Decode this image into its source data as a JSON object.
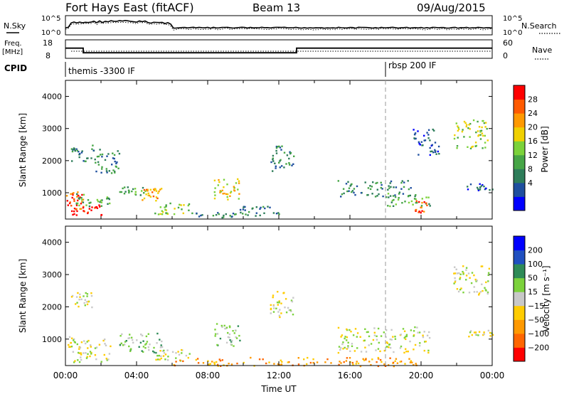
{
  "header": {
    "station": "Fort Hays East (fitACF)",
    "beam": "Beam 13",
    "date": "09/Aug/2015"
  },
  "aux": {
    "nsky_label": "N.Sky",
    "nsearch_label": "N.Search",
    "noise_ticks": [
      "10^5",
      "10^0"
    ],
    "freq_label_lines": [
      "Freq.",
      "[MHz]"
    ],
    "freq_ticks": [
      "18",
      "8"
    ],
    "nave_label": "Nave",
    "nave_ticks": [
      "60",
      "0"
    ],
    "cpid_label": "CPID",
    "cpid_segments": [
      {
        "label": "themis -3300 IF",
        "start_h": 0.0
      },
      {
        "label": "rbsp 200 IF",
        "start_h": 18.0
      }
    ],
    "freq_steps": [
      {
        "start_h": 0.0,
        "end_h": 1.0,
        "mhz": 13.5
      },
      {
        "start_h": 1.0,
        "end_h": 13.0,
        "mhz": 11.0
      },
      {
        "start_h": 13.0,
        "end_h": 24.0,
        "mhz": 13.5
      }
    ]
  },
  "colors": {
    "power_scale": [
      "#0000ff",
      "#1f4f9f",
      "#2e7d5a",
      "#46a546",
      "#7bd23a",
      "#f0d000",
      "#ff9900",
      "#ff5a00",
      "#ff0000"
    ],
    "velocity_scale": [
      "#0000ff",
      "#2050c0",
      "#2e8b57",
      "#7cd23c",
      "#c8c8c8",
      "#ffcc00",
      "#ff9900",
      "#ff6600",
      "#ff0000"
    ]
  },
  "power_colorbar": {
    "label": "Power [dB]",
    "ticks": [
      "28",
      "24",
      "20",
      "16",
      "12",
      "8",
      "4"
    ]
  },
  "velocity_colorbar": {
    "label": "Velocity [m s⁻¹]",
    "ticks": [
      "200",
      "100",
      "50",
      "15",
      "−15",
      "−50",
      "−100",
      "−200"
    ]
  },
  "chart_data": [
    {
      "type": "heatmap",
      "panel": "power",
      "xlabel": "",
      "ylabel": "Slant Range [km]",
      "xlim_hours": [
        0,
        24
      ],
      "ylim_km": [
        180,
        4500
      ],
      "yticks": [
        1000,
        2000,
        3000,
        4000
      ],
      "vertical_marker_h": 18.0,
      "echo_regions": [
        {
          "t0": 0.0,
          "t1": 1.0,
          "r0": 500,
          "r1": 1100,
          "level": 7
        },
        {
          "t0": 0.3,
          "t1": 2.0,
          "r0": 300,
          "r1": 700,
          "level": 8
        },
        {
          "t0": 0.5,
          "t1": 2.5,
          "r0": 600,
          "r1": 1000,
          "level": 3
        },
        {
          "t0": 0.3,
          "t1": 1.5,
          "r0": 2000,
          "r1": 2500,
          "level": 2
        },
        {
          "t0": 1.5,
          "t1": 3.0,
          "r0": 1600,
          "r1": 2400,
          "level": 2
        },
        {
          "t0": 3.0,
          "t1": 4.5,
          "r0": 900,
          "r1": 1200,
          "level": 3
        },
        {
          "t0": 4.2,
          "t1": 5.5,
          "r0": 700,
          "r1": 1200,
          "level": 6
        },
        {
          "t0": 5.0,
          "t1": 7.0,
          "r0": 350,
          "r1": 700,
          "level": 4
        },
        {
          "t0": 7.0,
          "t1": 9.5,
          "r0": 250,
          "r1": 400,
          "level": 2
        },
        {
          "t0": 8.3,
          "t1": 9.8,
          "r0": 800,
          "r1": 1500,
          "level": 5
        },
        {
          "t0": 11.5,
          "t1": 12.8,
          "r0": 1700,
          "r1": 2500,
          "level": 2
        },
        {
          "t0": 9.5,
          "t1": 12.0,
          "r0": 300,
          "r1": 600,
          "level": 2
        },
        {
          "t0": 15.3,
          "t1": 19.5,
          "r0": 900,
          "r1": 1400,
          "level": 2
        },
        {
          "t0": 18.0,
          "t1": 20.5,
          "r0": 600,
          "r1": 1000,
          "level": 3
        },
        {
          "t0": 19.6,
          "t1": 20.3,
          "r0": 400,
          "r1": 800,
          "level": 7
        },
        {
          "t0": 21.8,
          "t1": 23.8,
          "r0": 2400,
          "r1": 3300,
          "level": 4
        },
        {
          "t0": 19.5,
          "t1": 21.0,
          "r0": 2200,
          "r1": 3000,
          "level": 1
        },
        {
          "t0": 22.5,
          "t1": 24.0,
          "r0": 1100,
          "r1": 1300,
          "level": 1
        }
      ]
    },
    {
      "type": "heatmap",
      "panel": "velocity",
      "xlabel": "Time UT",
      "ylabel": "Slant Range [km]",
      "xlim_hours": [
        0,
        24
      ],
      "xticks": [
        "00:00",
        "04:00",
        "08:00",
        "12:00",
        "16:00",
        "20:00",
        "00:00"
      ],
      "ylim_km": [
        180,
        4500
      ],
      "yticks": [
        1000,
        2000,
        3000,
        4000
      ],
      "vertical_marker_h": 18.0,
      "echo_regions": [
        {
          "t0": 0.0,
          "t1": 2.5,
          "r0": 300,
          "r1": 1100,
          "level": 4
        },
        {
          "t0": 0.3,
          "t1": 1.5,
          "r0": 2000,
          "r1": 2500,
          "level": 4
        },
        {
          "t0": 3.0,
          "t1": 5.5,
          "r0": 600,
          "r1": 1200,
          "level": 3
        },
        {
          "t0": 5.0,
          "t1": 7.0,
          "r0": 350,
          "r1": 700,
          "level": 4
        },
        {
          "t0": 6.0,
          "t1": 20.0,
          "r0": 180,
          "r1": 450,
          "level": 6
        },
        {
          "t0": 8.3,
          "t1": 9.8,
          "r0": 800,
          "r1": 1500,
          "level": 3
        },
        {
          "t0": 11.5,
          "t1": 12.8,
          "r0": 1700,
          "r1": 2500,
          "level": 4
        },
        {
          "t0": 15.3,
          "t1": 20.5,
          "r0": 600,
          "r1": 1400,
          "level": 4
        },
        {
          "t0": 21.8,
          "t1": 23.8,
          "r0": 2400,
          "r1": 3300,
          "level": 4
        },
        {
          "t0": 22.5,
          "t1": 24.0,
          "r0": 1100,
          "r1": 1300,
          "level": 4
        }
      ]
    }
  ]
}
